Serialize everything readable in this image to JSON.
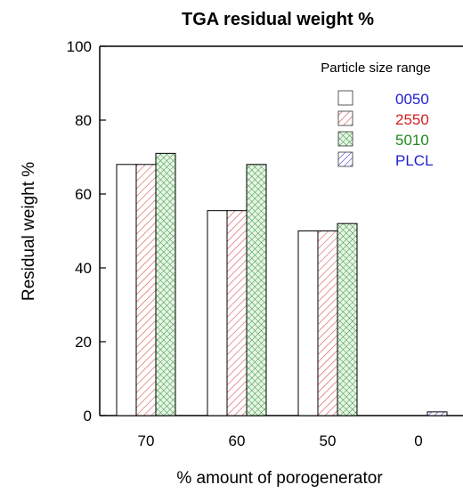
{
  "chart_data": {
    "type": "bar",
    "title": "TGA residual weight %",
    "xlabel": "% amount of porogenerator",
    "ylabel": "Residual weight %",
    "categories": [
      "70",
      "60",
      "50",
      "0"
    ],
    "ylim": [
      0,
      100
    ],
    "yticks": [
      "0",
      "20",
      "40",
      "60",
      "80",
      "100"
    ],
    "legend_title": "Particle size range",
    "legend_position": "top-right",
    "grid": false,
    "series": [
      {
        "name": "0050",
        "values": [
          68,
          55.5,
          50,
          null
        ],
        "fill": "white",
        "color": "#1f1fd0"
      },
      {
        "name": "2550",
        "values": [
          68,
          55.5,
          50,
          null
        ],
        "fill": "hatch-red",
        "color": "#d02020"
      },
      {
        "name": "5010",
        "values": [
          71,
          68,
          52,
          null
        ],
        "fill": "crosshatch-green",
        "color": "#208a20"
      },
      {
        "name": "PLCL",
        "values": [
          null,
          null,
          null,
          1
        ],
        "fill": "hatch-blue",
        "color": "#1f1fd0"
      }
    ]
  }
}
